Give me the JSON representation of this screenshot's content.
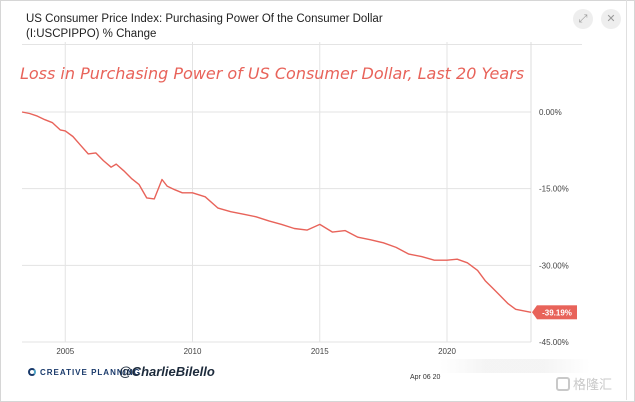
{
  "header": {
    "title": "US Consumer Price Index: Purchasing Power Of the Consumer Dollar (I:USCPIPPO) % Change"
  },
  "toolbar": {
    "icons": [
      "expand-icon",
      "close-icon"
    ],
    "expand_glyph": "⤢",
    "close_glyph": "✕"
  },
  "chart_data": {
    "type": "line",
    "annotation": "Loss in Purchasing Power of US Consumer Dollar, Last 20 Years",
    "x_tick_labels": [
      "2005",
      "2010",
      "2015",
      "2020"
    ],
    "x_ticks": [
      2005,
      2010,
      2015,
      2020
    ],
    "y_tick_labels": [
      "0.00%",
      "-15.00%",
      "-30.00%",
      "-45.00%"
    ],
    "y_ticks": [
      0,
      -15,
      -30,
      -45
    ],
    "xlim": [
      2003.3,
      2023.3
    ],
    "ylim": [
      -45,
      0
    ],
    "grid": true,
    "series": [
      {
        "color": "#e8635a",
        "last_value_label": "-39.19%",
        "x": [
          2003.3,
          2003.6,
          2003.9,
          2004.2,
          2004.5,
          2004.8,
          2005.0,
          2005.3,
          2005.6,
          2005.9,
          2006.2,
          2006.5,
          2006.8,
          2007.0,
          2007.3,
          2007.6,
          2007.9,
          2008.2,
          2008.5,
          2008.8,
          2009.0,
          2009.3,
          2009.6,
          2010.0,
          2010.5,
          2011.0,
          2011.5,
          2012.0,
          2012.5,
          2013.0,
          2013.5,
          2014.0,
          2014.5,
          2015.0,
          2015.5,
          2016.0,
          2016.5,
          2017.0,
          2017.5,
          2018.0,
          2018.5,
          2019.0,
          2019.5,
          2020.0,
          2020.4,
          2020.8,
          2021.2,
          2021.5,
          2021.8,
          2022.1,
          2022.4,
          2022.7,
          2023.0,
          2023.3
        ],
        "values": [
          0.0,
          -0.3,
          -0.8,
          -1.5,
          -2.1,
          -3.5,
          -3.7,
          -4.8,
          -6.5,
          -8.2,
          -8.0,
          -9.5,
          -10.8,
          -10.2,
          -11.5,
          -13.0,
          -14.2,
          -16.8,
          -17.0,
          -13.2,
          -14.5,
          -15.2,
          -15.8,
          -15.8,
          -16.6,
          -18.8,
          -19.5,
          -20.0,
          -20.5,
          -21.3,
          -22.0,
          -22.8,
          -23.1,
          -22.0,
          -23.5,
          -23.2,
          -24.5,
          -25.0,
          -25.6,
          -26.5,
          -27.8,
          -28.3,
          -29.0,
          -29.0,
          -28.8,
          -29.5,
          -31.0,
          -33.0,
          -34.5,
          -36.0,
          -37.5,
          -38.6,
          -38.9,
          -39.19
        ]
      }
    ]
  },
  "footer": {
    "brand": "CREATIVE PLANNING",
    "handle": "@CharlieBilello",
    "date_fragment": "Apr 06 20",
    "watermark": "格隆汇"
  }
}
